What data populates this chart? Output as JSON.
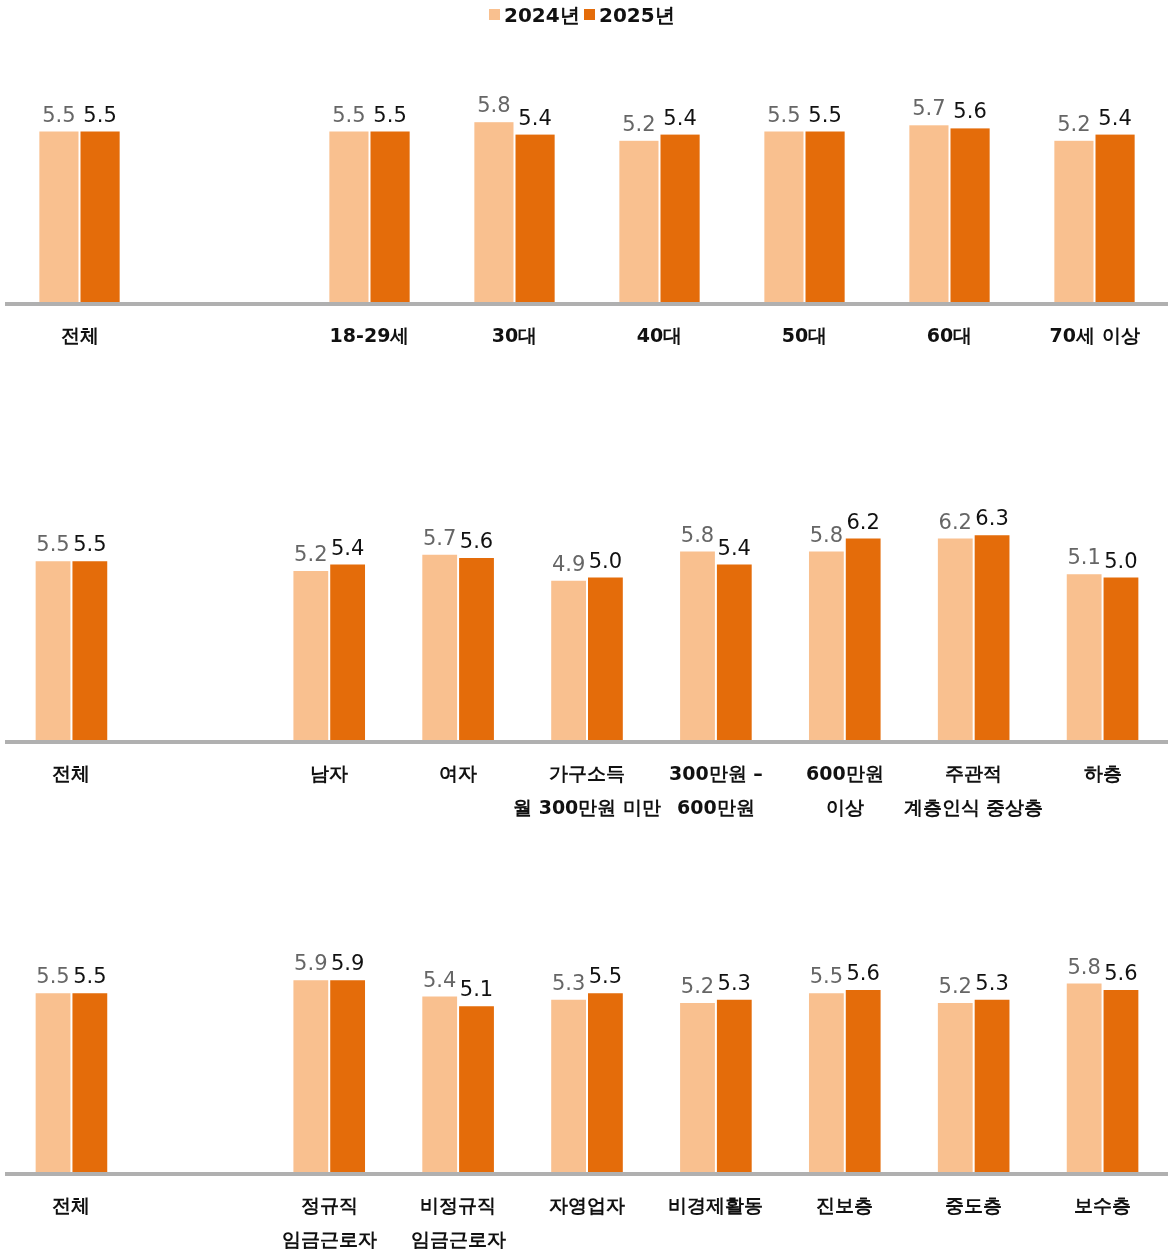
{
  "chart_data": [
    {
      "type": "bar",
      "legend": "top",
      "data_labels": true,
      "categories": [
        "전체",
        null,
        "18-29세",
        "30대",
        "40대",
        "50대",
        "60대",
        "70세 이상"
      ],
      "series": [
        {
          "name": "2024년",
          "color": "#f9c08f",
          "values": [
            5.5,
            null,
            5.5,
            5.8,
            5.2,
            5.5,
            5.7,
            5.2
          ],
          "value_labels": [
            "5.5",
            null,
            "5.5",
            "5.8",
            "5.2",
            "5.5",
            "5.7",
            "5.2"
          ]
        },
        {
          "name": "2025년",
          "color": "#e46c0a",
          "values": [
            5.5,
            null,
            5.5,
            5.4,
            5.4,
            5.5,
            5.6,
            5.4
          ],
          "value_labels": [
            "5.5",
            null,
            "5.5",
            "5.4",
            "5.4",
            "5.5",
            "5.6",
            "5.4"
          ]
        }
      ]
    },
    {
      "type": "bar",
      "data_labels": true,
      "categories": [
        "전체",
        null,
        "남자",
        "여자",
        "가구소득\n월 300만원 미만",
        "300만원 –\n600만원",
        "600만원\n이상",
        "주관적\n계층인식 중상층",
        "하층"
      ],
      "series": [
        {
          "color": "#f9c08f",
          "values": [
            5.5,
            null,
            5.2,
            5.7,
            4.9,
            5.8,
            5.8,
            6.2,
            5.1
          ],
          "value_labels": [
            "5.5",
            null,
            "5.2",
            "5.7",
            "4.9",
            "5.8",
            "5.8",
            "6.2",
            "5.1"
          ]
        },
        {
          "color": "#e46c0a",
          "values": [
            5.5,
            null,
            5.4,
            5.6,
            5.0,
            5.4,
            6.2,
            6.3,
            5.0
          ],
          "value_labels": [
            "5.5",
            null,
            "5.4",
            "5.6",
            "5.0",
            "5.4",
            "6.2",
            "6.3",
            "5.0"
          ]
        }
      ]
    },
    {
      "type": "bar",
      "data_labels": true,
      "categories": [
        "전체",
        null,
        "정규직\n임금근로자",
        "비정규직\n임금근로자",
        "자영업자",
        "비경제활동",
        "진보층",
        "중도층",
        "보수층"
      ],
      "series": [
        {
          "color": "#f9c08f",
          "values": [
            5.5,
            null,
            5.9,
            5.4,
            5.3,
            5.2,
            5.5,
            5.2,
            5.8
          ],
          "value_labels": [
            "5.5",
            null,
            "5.9",
            "5.4",
            "5.3",
            "5.2",
            "5.5",
            "5.2",
            "5.8"
          ]
        },
        {
          "color": "#e46c0a",
          "values": [
            5.5,
            null,
            5.9,
            5.1,
            5.5,
            5.3,
            5.6,
            5.3,
            5.6
          ],
          "value_labels": [
            "5.5",
            null,
            "5.9",
            "5.1",
            "5.5",
            "5.3",
            "5.6",
            "5.3",
            "5.6"
          ]
        }
      ]
    }
  ]
}
